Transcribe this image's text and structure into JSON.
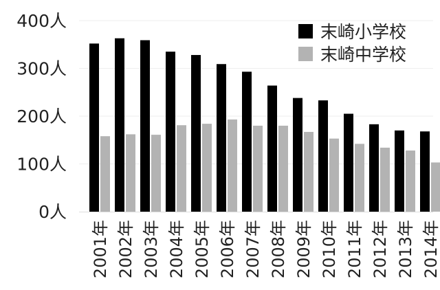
{
  "chart_data": {
    "type": "bar",
    "categories": [
      "2001年",
      "2002年",
      "2003年",
      "2004年",
      "2005年",
      "2006年",
      "2007年",
      "2008年",
      "2009年",
      "2010年",
      "2011年",
      "2012年",
      "2013年",
      "2014年"
    ],
    "series": [
      {
        "name": "末崎小学校",
        "color": "#000000",
        "values": [
          352,
          363,
          359,
          335,
          328,
          309,
          293,
          264,
          238,
          233,
          205,
          183,
          170,
          168
        ]
      },
      {
        "name": "末崎中学校",
        "color": "#b3b3b3",
        "values": [
          158,
          162,
          161,
          181,
          184,
          193,
          180,
          180,
          167,
          153,
          142,
          134,
          128,
          103
        ]
      }
    ],
    "yticks": [
      "0人",
      "100人",
      "200人",
      "300人",
      "400人"
    ],
    "ylim": [
      0,
      400
    ],
    "grid": true,
    "legend": "top-right",
    "title": "",
    "xlabel": "",
    "ylabel": ""
  }
}
